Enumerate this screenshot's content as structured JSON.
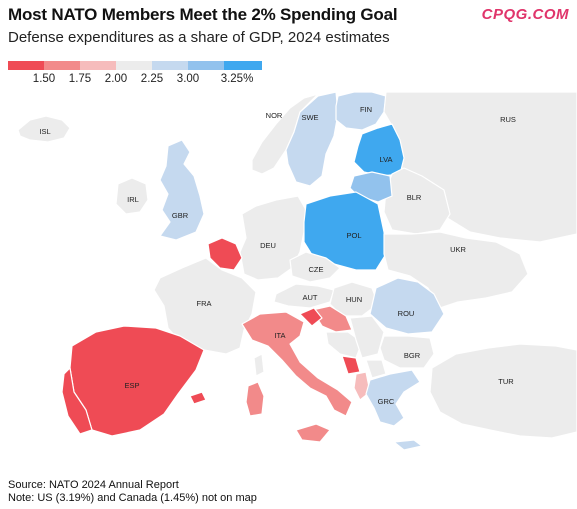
{
  "header": {
    "title": "Most NATO Members Meet the 2% Spending Goal",
    "logo": "CPQG.COM",
    "subtitle": "Defense expenditures as a share of GDP, 2024 estimates"
  },
  "legend": {
    "bins": [
      {
        "color": "#ef4b55"
      },
      {
        "color": "#f28a8a"
      },
      {
        "color": "#f6bcbc"
      },
      {
        "color": "#ececec"
      },
      {
        "color": "#c5d9ef"
      },
      {
        "color": "#92c2ed"
      },
      {
        "color": "#3fa8ef"
      }
    ],
    "ticks": [
      "1.50",
      "1.75",
      "2.00",
      "2.25",
      "3.00",
      "3.25%"
    ]
  },
  "map": {
    "colors": {
      "land": "#ececec",
      "background": "#ffffff"
    },
    "countries": [
      {
        "code": "ISL",
        "label": "ISL"
      },
      {
        "code": "IRL",
        "label": "IRL"
      },
      {
        "code": "GBR",
        "label": "GBR"
      },
      {
        "code": "NOR",
        "label": "NOR"
      },
      {
        "code": "SWE",
        "label": "SWE"
      },
      {
        "code": "FIN",
        "label": "FIN"
      },
      {
        "code": "RUS",
        "label": "RUS"
      },
      {
        "code": "LVA",
        "label": "LVA"
      },
      {
        "code": "BLR",
        "label": "BLR"
      },
      {
        "code": "DEU",
        "label": "DEU"
      },
      {
        "code": "POL",
        "label": "POL"
      },
      {
        "code": "UKR",
        "label": "UKR"
      },
      {
        "code": "CZE",
        "label": "CZE"
      },
      {
        "code": "FRA",
        "label": "FRA"
      },
      {
        "code": "AUT",
        "label": "AUT"
      },
      {
        "code": "HUN",
        "label": "HUN"
      },
      {
        "code": "ROU",
        "label": "ROU"
      },
      {
        "code": "ITA",
        "label": "ITA"
      },
      {
        "code": "BGR",
        "label": "BGR"
      },
      {
        "code": "ESP",
        "label": "ESP"
      },
      {
        "code": "TUR",
        "label": "TUR"
      },
      {
        "code": "GRC",
        "label": "GRC"
      }
    ]
  },
  "footer": {
    "source": "Source: NATO 2024 Annual Report",
    "note": "Note: US (3.19%) and Canada (1.45%) not on map"
  }
}
